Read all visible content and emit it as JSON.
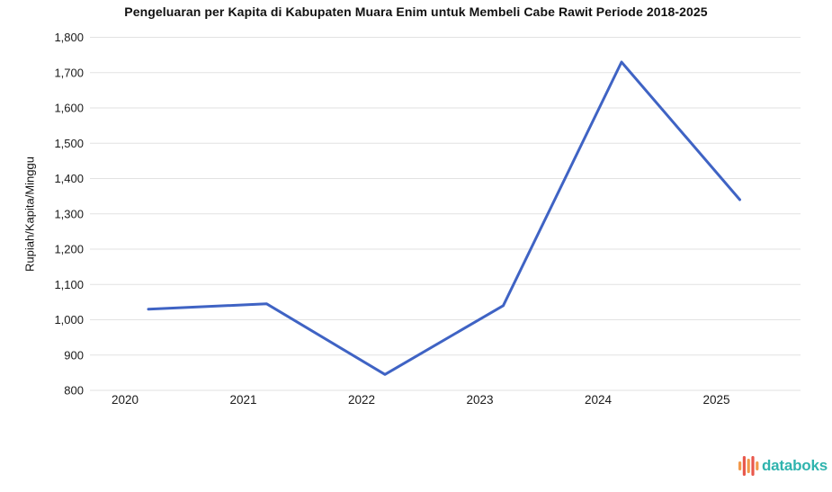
{
  "title": "Pengeluaran per Kapita di Kabupaten Muara Enim untuk Membeli Cabe Rawit Periode 2018-2025",
  "chart_data": {
    "type": "line",
    "categories": [
      "2020",
      "2021",
      "2022",
      "2023",
      "2024",
      "2025"
    ],
    "values": [
      1030,
      1045,
      845,
      1040,
      1730,
      1340
    ],
    "title": "Pengeluaran per Kapita di Kabupaten Muara Enim untuk Membeli Cabe Rawit Periode 2018-2025",
    "xlabel": "",
    "ylabel": "Rupiah/Kapita/Minggu",
    "ylim": [
      800,
      1800
    ],
    "ytick_step": 100,
    "grid": true,
    "grid_color": "#e2e2e2",
    "legend": "none",
    "line_color": "#3f63c4"
  },
  "branding": {
    "logo_text": "databoks",
    "logo_color": "#2fb4ae",
    "icon_bar_colors": [
      "#f2994a",
      "#e8584c",
      "#f2994a",
      "#e8584c",
      "#f2994a"
    ]
  }
}
